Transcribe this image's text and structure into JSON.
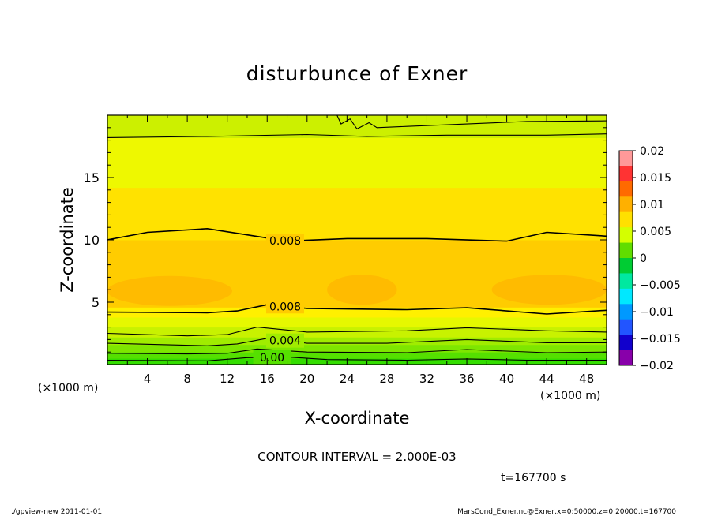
{
  "chart_data": {
    "type": "heatmap",
    "title": "disturbunce of Exner",
    "xlabel": "X-coordinate",
    "ylabel": "Z-coordinate",
    "x_unit": "(×1000 m)",
    "y_unit": "(×1000 m)",
    "xlim": [
      0,
      50
    ],
    "ylim": [
      0,
      20
    ],
    "x_ticks": [
      4,
      8,
      12,
      16,
      20,
      24,
      28,
      32,
      36,
      40,
      44,
      48
    ],
    "y_ticks": [
      5,
      10,
      15
    ],
    "colorbar": {
      "min": -0.02,
      "max": 0.02,
      "tick_values": [
        0.02,
        0.015,
        0.01,
        0.005,
        0,
        -0.005,
        -0.01,
        -0.015,
        -0.02
      ],
      "tick_labels": [
        "0.02",
        "0.015",
        "0.01",
        "0.005",
        "0",
        "−0.005",
        "−0.01",
        "−0.015",
        "−0.02"
      ],
      "colors": [
        "#ff9999",
        "#ff3333",
        "#ff6a00",
        "#ffb000",
        "#ffe000",
        "#d4ff00",
        "#60dd00",
        "#00cc33",
        "#00e8a0",
        "#00e8ff",
        "#0099ff",
        "#2255ff",
        "#1100cc",
        "#8800aa"
      ]
    },
    "field_bands": [
      {
        "z_from": 0.0,
        "z_to": 0.5,
        "value": 0.0005,
        "color": "#33dd00"
      },
      {
        "z_from": 0.5,
        "z_to": 1.0,
        "value": 0.0015,
        "color": "#55e000"
      },
      {
        "z_from": 1.0,
        "z_to": 1.6,
        "value": 0.0025,
        "color": "#7ee600"
      },
      {
        "z_from": 1.6,
        "z_to": 2.2,
        "value": 0.0035,
        "color": "#a0ec00"
      },
      {
        "z_from": 2.2,
        "z_to": 3.0,
        "value": 0.0045,
        "color": "#c8f200"
      },
      {
        "z_from": 3.0,
        "z_to": 3.8,
        "value": 0.0055,
        "color": "#e6f800"
      },
      {
        "z_from": 3.8,
        "z_to": 4.6,
        "value": 0.0065,
        "color": "#fff000"
      },
      {
        "z_from": 4.6,
        "z_to": 10.0,
        "value": 0.0085,
        "color": "#ffcc00"
      },
      {
        "z_from": 10.0,
        "z_to": 14.2,
        "value": 0.0075,
        "color": "#ffe200"
      },
      {
        "z_from": 14.2,
        "z_to": 18.2,
        "value": 0.0062,
        "color": "#eef800"
      },
      {
        "z_from": 18.2,
        "z_to": 20.0,
        "value": 0.0045,
        "color": "#ccf000"
      }
    ],
    "local_maxima": [
      {
        "x_from": 0.0,
        "x_to": 12.5,
        "z_center": 5.9,
        "value": 0.0092,
        "color": "#ffbb00"
      },
      {
        "x_from": 22.0,
        "x_to": 29.0,
        "z_center": 6.0,
        "value": 0.0091,
        "color": "#ffbb00"
      },
      {
        "x_from": 38.5,
        "x_to": 50.0,
        "z_center": 6.0,
        "value": 0.0092,
        "color": "#ffbb00"
      }
    ],
    "contours": [
      {
        "level": 0.0,
        "label": "0.00",
        "label_x": 16.5,
        "points": [
          [
            0,
            0.35
          ],
          [
            10,
            0.3
          ],
          [
            14,
            0.55
          ],
          [
            18,
            0.6
          ],
          [
            22,
            0.4
          ],
          [
            30,
            0.35
          ],
          [
            36,
            0.45
          ],
          [
            42,
            0.35
          ],
          [
            50,
            0.35
          ]
        ]
      },
      {
        "level": 0.002,
        "label": "",
        "label_x": null,
        "points": [
          [
            0,
            0.9
          ],
          [
            8,
            0.85
          ],
          [
            12,
            0.9
          ],
          [
            15,
            1.25
          ],
          [
            20,
            1.0
          ],
          [
            30,
            0.95
          ],
          [
            36,
            1.2
          ],
          [
            44,
            0.95
          ],
          [
            50,
            1.0
          ]
        ]
      },
      {
        "level": 0.004,
        "label": "0.004",
        "label_x": 17.8,
        "points": [
          [
            0,
            1.7
          ],
          [
            10,
            1.5
          ],
          [
            13,
            1.65
          ],
          [
            16,
            2.1
          ],
          [
            20,
            1.7
          ],
          [
            28,
            1.7
          ],
          [
            36,
            2.0
          ],
          [
            44,
            1.75
          ],
          [
            50,
            1.75
          ]
        ]
      },
      {
        "level": 0.006,
        "label": "",
        "label_x": null,
        "points": [
          [
            0,
            2.5
          ],
          [
            8,
            2.3
          ],
          [
            12,
            2.4
          ],
          [
            15,
            3.0
          ],
          [
            20,
            2.6
          ],
          [
            30,
            2.7
          ],
          [
            36,
            2.95
          ],
          [
            44,
            2.7
          ],
          [
            50,
            2.6
          ]
        ]
      },
      {
        "level": 0.008,
        "label": "0.008",
        "label_x": 17.8,
        "points": [
          [
            0,
            4.2
          ],
          [
            10,
            4.15
          ],
          [
            13,
            4.3
          ],
          [
            16,
            4.8
          ],
          [
            20,
            4.5
          ],
          [
            30,
            4.4
          ],
          [
            36,
            4.55
          ],
          [
            44,
            4.05
          ],
          [
            50,
            4.35
          ]
        ]
      },
      {
        "level": 0.008,
        "label": "0.008",
        "label_x": 17.8,
        "points": [
          [
            0,
            10.0
          ],
          [
            4,
            10.6
          ],
          [
            8,
            10.8
          ],
          [
            10,
            10.9
          ],
          [
            14,
            10.4
          ],
          [
            18,
            9.9
          ],
          [
            24,
            10.1
          ],
          [
            32,
            10.1
          ],
          [
            40,
            9.9
          ],
          [
            44,
            10.6
          ],
          [
            50,
            10.3
          ]
        ]
      },
      {
        "level": 0.006,
        "label": "",
        "label_x": null,
        "points": [
          [
            0,
            18.2
          ],
          [
            10,
            18.3
          ],
          [
            20,
            18.45
          ],
          [
            26,
            18.3
          ],
          [
            34,
            18.4
          ],
          [
            44,
            18.4
          ],
          [
            50,
            18.5
          ]
        ]
      },
      {
        "level": 0.004,
        "label": "",
        "label_x": null,
        "points": [
          [
            23,
            20.0
          ],
          [
            23.4,
            19.3
          ],
          [
            24.3,
            19.7
          ],
          [
            25.0,
            18.9
          ],
          [
            26.2,
            19.4
          ],
          [
            27.0,
            19.0
          ],
          [
            30,
            19.1
          ],
          [
            36,
            19.3
          ],
          [
            42,
            19.5
          ],
          [
            50,
            19.55
          ]
        ]
      }
    ]
  },
  "annotations": {
    "contour_interval": "CONTOUR INTERVAL = 2.000E-03",
    "time": "t=167700 s",
    "footer_left": "./gpview-new   2011-01-01",
    "footer_right": "MarsCond_Exner.nc@Exner,x=0:50000,z=0:20000,t=167700"
  }
}
